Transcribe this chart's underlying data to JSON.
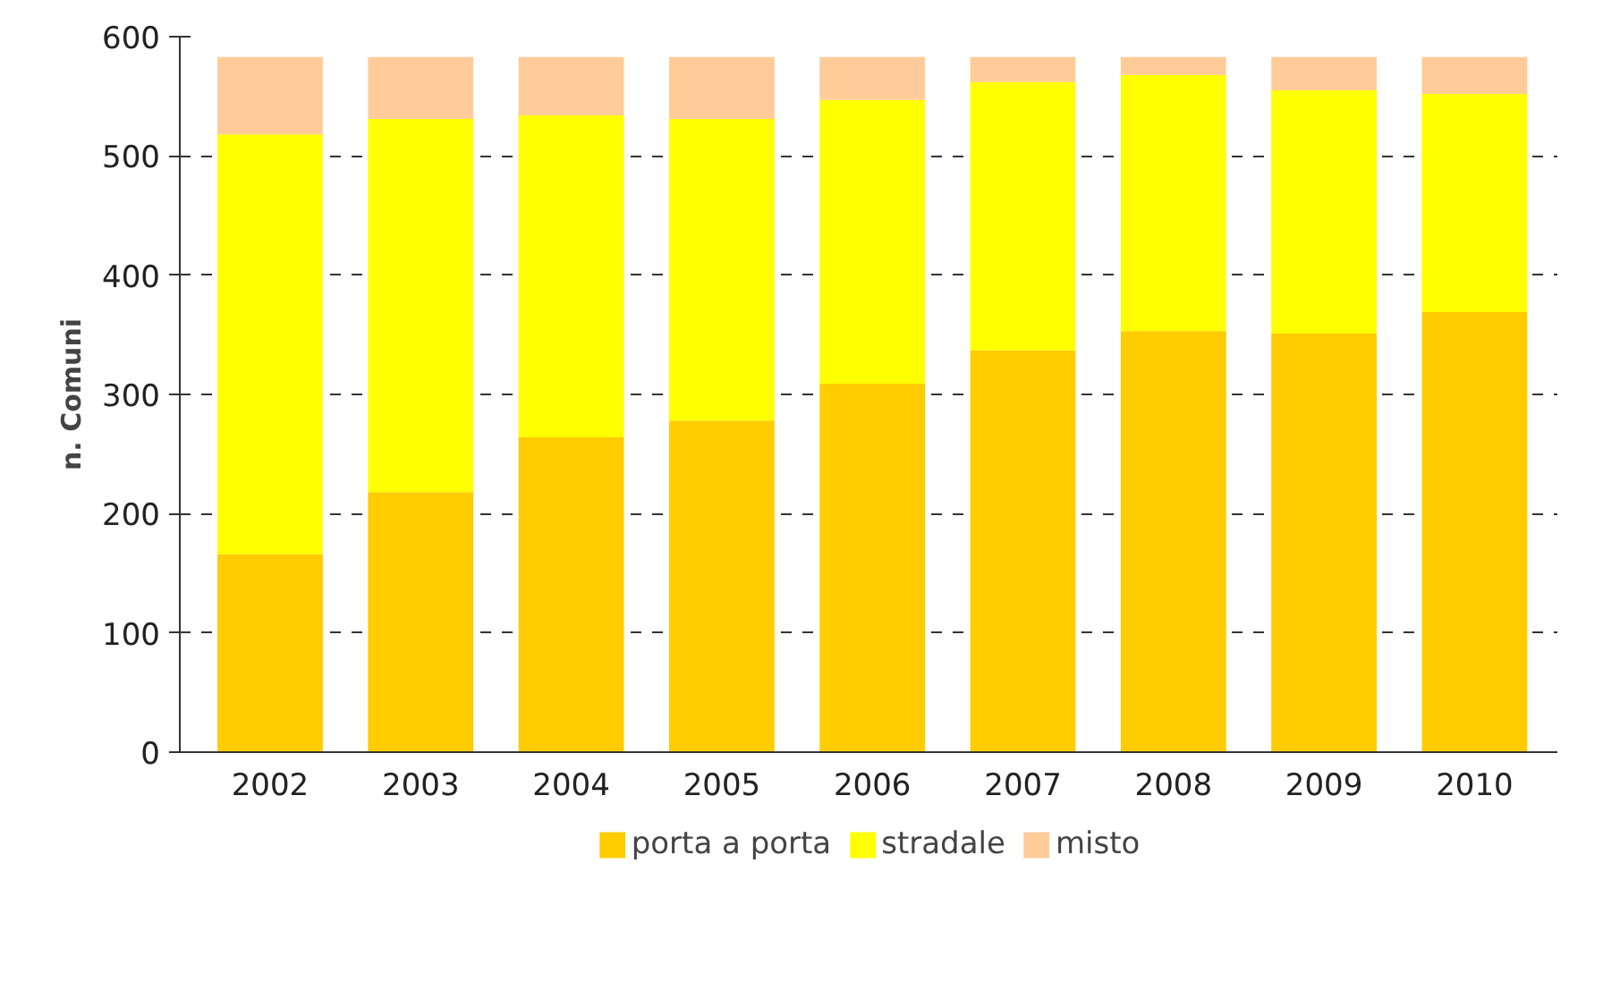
{
  "chart_data": {
    "type": "bar",
    "stacked": true,
    "ylabel": "n. Comuni",
    "categories": [
      "2002",
      "2003",
      "2004",
      "2005",
      "2006",
      "2007",
      "2008",
      "2009",
      "2010"
    ],
    "series": [
      {
        "name": "porta a porta",
        "color": "#ffcc00",
        "values": [
          166,
          218,
          264,
          278,
          309,
          337,
          353,
          351,
          369
        ]
      },
      {
        "name": "stradale",
        "color": "#ffff00",
        "values": [
          352,
          313,
          270,
          253,
          238,
          225,
          215,
          204,
          183
        ]
      },
      {
        "name": "misto",
        "color": "#ffcc99",
        "values": [
          65,
          52,
          49,
          52,
          36,
          21,
          15,
          28,
          31
        ]
      }
    ],
    "ylim": [
      0,
      600
    ],
    "yticks": [
      0,
      100,
      200,
      300,
      400,
      500,
      600
    ],
    "grid": "y",
    "legend": "bottom"
  }
}
